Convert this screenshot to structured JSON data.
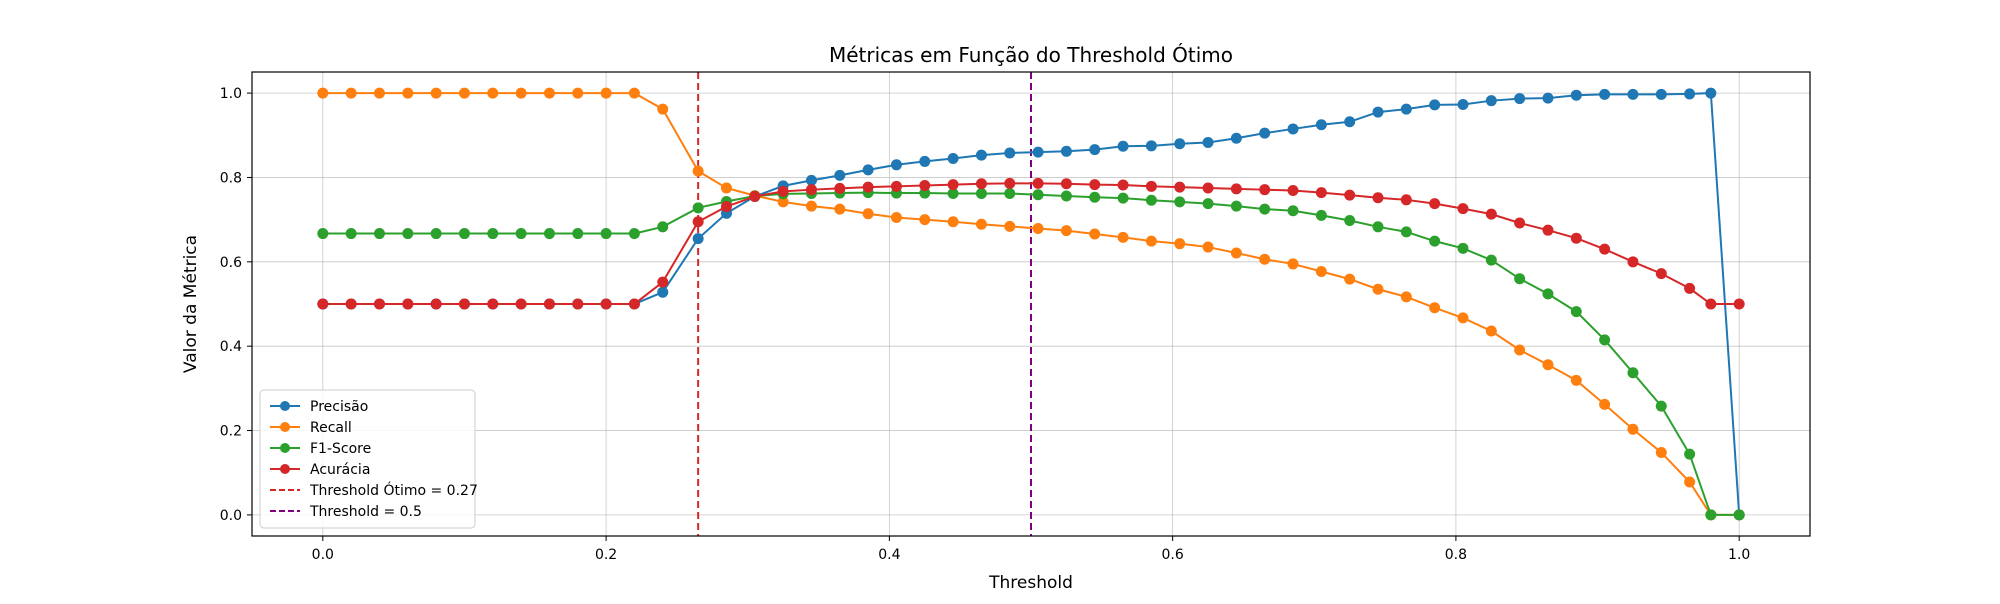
{
  "chart_data": {
    "type": "line",
    "title": "Métricas em Função do Threshold Ótimo",
    "xlabel": "Threshold",
    "ylabel": "Valor da Métrica",
    "xlim": [
      -0.05,
      1.05
    ],
    "ylim": [
      -0.05,
      1.05
    ],
    "xticks": [
      "0.0",
      "0.2",
      "0.4",
      "0.6",
      "0.8",
      "1.0"
    ],
    "yticks": [
      "0.0",
      "0.2",
      "0.4",
      "0.6",
      "0.8",
      "1.0"
    ],
    "grid": true,
    "legend_position": "lower-left",
    "x": [
      0.0,
      0.02,
      0.04,
      0.06,
      0.08,
      0.1,
      0.12,
      0.14,
      0.16,
      0.18,
      0.2,
      0.22,
      0.24,
      0.265,
      0.285,
      0.305,
      0.325,
      0.345,
      0.365,
      0.385,
      0.405,
      0.425,
      0.445,
      0.465,
      0.485,
      0.505,
      0.525,
      0.545,
      0.565,
      0.585,
      0.605,
      0.625,
      0.645,
      0.665,
      0.685,
      0.705,
      0.725,
      0.745,
      0.765,
      0.785,
      0.805,
      0.825,
      0.845,
      0.865,
      0.885,
      0.905,
      0.925,
      0.945,
      0.965,
      0.98,
      1.0
    ],
    "series": [
      {
        "name": "Precisão",
        "color": "#1f77b4",
        "values": [
          0.5,
          0.5,
          0.5,
          0.5,
          0.5,
          0.5,
          0.5,
          0.5,
          0.5,
          0.5,
          0.5,
          0.5,
          0.528,
          0.655,
          0.715,
          0.755,
          0.78,
          0.793,
          0.805,
          0.818,
          0.83,
          0.838,
          0.845,
          0.853,
          0.858,
          0.86,
          0.862,
          0.866,
          0.874,
          0.875,
          0.88,
          0.883,
          0.893,
          0.905,
          0.915,
          0.925,
          0.932,
          0.955,
          0.962,
          0.972,
          0.973,
          0.982,
          0.987,
          0.988,
          0.995,
          0.997,
          0.997,
          0.997,
          0.998,
          1.0,
          0.0
        ]
      },
      {
        "name": "Recall",
        "color": "#ff7f0e",
        "values": [
          1.0,
          1.0,
          1.0,
          1.0,
          1.0,
          1.0,
          1.0,
          1.0,
          1.0,
          1.0,
          1.0,
          1.0,
          0.962,
          0.815,
          0.775,
          0.757,
          0.742,
          0.732,
          0.725,
          0.714,
          0.705,
          0.7,
          0.695,
          0.689,
          0.684,
          0.679,
          0.674,
          0.666,
          0.658,
          0.649,
          0.643,
          0.635,
          0.621,
          0.606,
          0.595,
          0.577,
          0.559,
          0.535,
          0.517,
          0.491,
          0.467,
          0.436,
          0.391,
          0.356,
          0.319,
          0.262,
          0.203,
          0.148,
          0.078,
          0.0,
          0.0
        ]
      },
      {
        "name": "F1-Score",
        "color": "#2ca02c",
        "values": [
          0.667,
          0.667,
          0.667,
          0.667,
          0.667,
          0.667,
          0.667,
          0.667,
          0.667,
          0.667,
          0.667,
          0.667,
          0.683,
          0.728,
          0.743,
          0.756,
          0.761,
          0.762,
          0.763,
          0.764,
          0.763,
          0.763,
          0.762,
          0.762,
          0.762,
          0.759,
          0.756,
          0.753,
          0.751,
          0.746,
          0.742,
          0.738,
          0.732,
          0.725,
          0.721,
          0.71,
          0.698,
          0.683,
          0.671,
          0.649,
          0.632,
          0.604,
          0.56,
          0.524,
          0.482,
          0.415,
          0.337,
          0.258,
          0.144,
          0.0,
          0.0
        ]
      },
      {
        "name": "Acurácia",
        "color": "#d62728",
        "values": [
          0.5,
          0.5,
          0.5,
          0.5,
          0.5,
          0.5,
          0.5,
          0.5,
          0.5,
          0.5,
          0.5,
          0.5,
          0.552,
          0.695,
          0.731,
          0.755,
          0.767,
          0.771,
          0.774,
          0.777,
          0.779,
          0.781,
          0.783,
          0.785,
          0.786,
          0.786,
          0.785,
          0.783,
          0.782,
          0.779,
          0.777,
          0.775,
          0.773,
          0.771,
          0.769,
          0.764,
          0.758,
          0.752,
          0.747,
          0.738,
          0.726,
          0.713,
          0.692,
          0.675,
          0.656,
          0.63,
          0.6,
          0.572,
          0.537,
          0.5,
          0.5
        ]
      }
    ],
    "vlines": [
      {
        "label": "Threshold Ótimo = 0.27",
        "x": 0.265,
        "color": "#d62728",
        "style": "dashed"
      },
      {
        "label": "Threshold = 0.5",
        "x": 0.5,
        "color": "#800080",
        "style": "dashed"
      }
    ]
  }
}
